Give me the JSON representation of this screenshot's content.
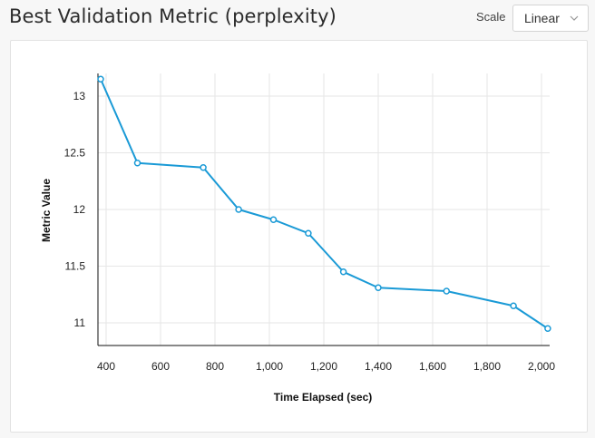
{
  "header": {
    "title": "Best Validation Metric (perplexity)",
    "scale_label": "Scale",
    "scale_value": "Linear"
  },
  "chart_data": {
    "type": "line",
    "title": "",
    "xlabel": "Time Elapsed (sec)",
    "ylabel": "Metric Value",
    "xlim": [
      370,
      2030
    ],
    "ylim": [
      10.8,
      13.2
    ],
    "x_ticks": [
      400,
      600,
      800,
      1000,
      1200,
      1400,
      1600,
      1800,
      2000
    ],
    "x_tick_labels": [
      "400",
      "600",
      "800",
      "1,000",
      "1,200",
      "1,400",
      "1,600",
      "1,800",
      "2,000"
    ],
    "y_ticks": [
      11,
      11.5,
      12,
      12.5,
      13
    ],
    "y_tick_labels": [
      "11",
      "11.5",
      "12",
      "12.5",
      "13"
    ],
    "grid": true,
    "series": [
      {
        "color": "#1a9ad6",
        "x": [
          380,
          515,
          757,
          887,
          1015,
          1143,
          1272,
          1400,
          1651,
          1897,
          2023
        ],
        "y": [
          13.15,
          12.41,
          12.37,
          12.0,
          11.91,
          11.79,
          11.45,
          11.31,
          11.28,
          11.15,
          10.95
        ]
      }
    ]
  }
}
